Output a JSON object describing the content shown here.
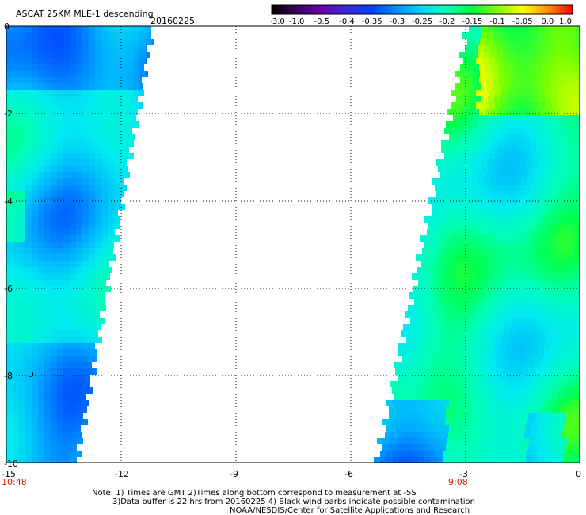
{
  "header": {
    "title": "ASCAT 25KM MLE-1 descending",
    "date": "20160225"
  },
  "colorbar": {
    "labels": [
      "-3.0",
      "-1.0",
      "-0.5",
      "-0.4",
      "-0.35",
      "-0.3",
      "-0.25",
      "-0.2",
      "-0.15",
      "-0.1",
      "-0.05",
      "0.0",
      "1.0"
    ],
    "colors": [
      "#000000",
      "#3a0060",
      "#6a00b0",
      "#3a2ad8",
      "#0040ff",
      "#0090ff",
      "#00d8ff",
      "#00ffb0",
      "#00ff40",
      "#80ff00",
      "#ffff00",
      "#ff9000",
      "#ff0000"
    ]
  },
  "axes": {
    "x_ticks": [
      "-15",
      "-12",
      "-9",
      "-6",
      "-3",
      "0"
    ],
    "y_ticks": [
      "0",
      "-2",
      "-4",
      "-6",
      "-8",
      "-10"
    ]
  },
  "pass_times": [
    "10:48",
    "9:08"
  ],
  "map_marker": "D",
  "notes": [
    "Note: 1) Times are GMT 2)Times along bottom correspond to measurement at -5S",
    "3)Data buffer is 22 hrs from 20160225 4) Black wind barbs indicate possible contamination",
    "NOAA/NESDIS/Center for Satellite Applications and Research"
  ]
}
